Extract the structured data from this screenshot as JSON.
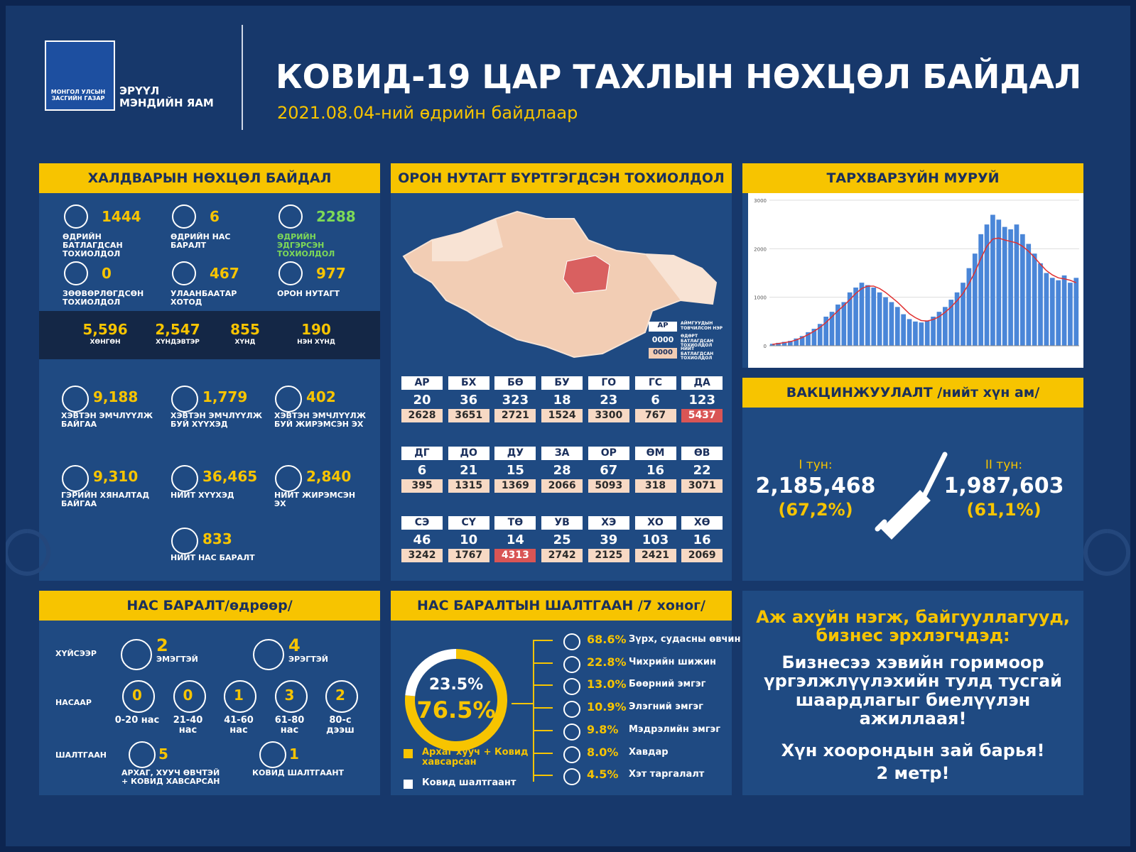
{
  "header": {
    "logo_text": "МОНГОЛ УЛСЫН ЗАСГИЙН ГАЗАР",
    "ministry": "ЭРҮҮЛ МЭНДИЙН ЯАМ",
    "title": "КОВИД-19 ЦАР ТАХЛЫН НӨХЦӨЛ БАЙДАЛ",
    "subtitle": "2021.08.04-ний өдрийн байдлаар"
  },
  "infection": {
    "title": "ХАЛДВАРЫН НӨХЦӨЛ БАЙДАЛ",
    "top": [
      {
        "value": "1444",
        "label": "ӨДРИЙН БАТЛАГДСАН ТОХИОЛДОЛ"
      },
      {
        "value": "6",
        "label": "ӨДРИЙН НАС БАРАЛТ"
      },
      {
        "value": "2288",
        "label": "ӨДРИЙН ЭДГЭРСЭН ТОХИОЛДОЛ",
        "color": "#7ed957"
      },
      {
        "value": "0",
        "label": "ЗӨӨВӨРЛӨГДСӨН ТОХИОЛДОЛ"
      },
      {
        "value": "467",
        "label": "УЛААНБААТАР ХОТОД"
      },
      {
        "value": "977",
        "label": "ОРОН НУТАГТ"
      }
    ],
    "severity": [
      {
        "value": "5,596",
        "label": "ХӨНГӨН"
      },
      {
        "value": "2,547",
        "label": "ХҮНДЭВТЭР"
      },
      {
        "value": "855",
        "label": "ХҮНД"
      },
      {
        "value": "190",
        "label": "НЭН ХҮНД"
      }
    ],
    "care": [
      {
        "value": "9,188",
        "label": "ХЭВТЭН ЭМЧЛҮҮЛЖ БАЙГАА"
      },
      {
        "value": "1,779",
        "label": "ХЭВТЭН ЭМЧЛҮҮЛЖ БУЙ ХҮҮХЭД"
      },
      {
        "value": "402",
        "label": "ХЭВТЭН ЭМЧЛҮҮЛЖ БУЙ ЖИРЭМСЭН ЭХ"
      },
      {
        "value": "9,310",
        "label": "ГЭРИЙН ХЯНАЛТАД БАЙГАА"
      },
      {
        "value": "36,465",
        "label": "НИЙТ ХҮҮХЭД"
      },
      {
        "value": "2,840",
        "label": "НИЙТ ЖИРЭМСЭН ЭХ"
      },
      {
        "value": "833",
        "label": "НИЙТ НАС БАРАЛТ"
      }
    ]
  },
  "map": {
    "title": "ОРОН НУТАГТ БҮРТГЭГДСЭН ТОХИОЛДОЛ",
    "legend": {
      "code": "АР",
      "code_desc": "АЙМГУУДЫН ТОВЧИЛСОН НЭР",
      "daily": "0000",
      "daily_desc": "ӨДӨРТ БАТЛАГДСАН ТОХИОЛДОЛ",
      "total": "0000",
      "total_desc": "НИЙТ БАТЛАГДСАН ТОХИОЛДОЛ"
    },
    "aimags": [
      {
        "code": "АР",
        "daily": "20",
        "total": "2628"
      },
      {
        "code": "БХ",
        "daily": "36",
        "total": "3651"
      },
      {
        "code": "БӨ",
        "daily": "323",
        "total": "2721"
      },
      {
        "code": "БУ",
        "daily": "18",
        "total": "1524"
      },
      {
        "code": "ГО",
        "daily": "23",
        "total": "3300"
      },
      {
        "code": "ГС",
        "daily": "6",
        "total": "767"
      },
      {
        "code": "ДА",
        "daily": "123",
        "total": "5437",
        "highlight": true
      },
      {
        "code": "ДГ",
        "daily": "6",
        "total": "395"
      },
      {
        "code": "ДО",
        "daily": "21",
        "total": "1315"
      },
      {
        "code": "ДУ",
        "daily": "15",
        "total": "1369"
      },
      {
        "code": "ЗА",
        "daily": "28",
        "total": "2066"
      },
      {
        "code": "ОР",
        "daily": "67",
        "total": "5093"
      },
      {
        "code": "ӨМ",
        "daily": "16",
        "total": "318"
      },
      {
        "code": "ӨВ",
        "daily": "22",
        "total": "3071"
      },
      {
        "code": "СЭ",
        "daily": "46",
        "total": "3242"
      },
      {
        "code": "СҮ",
        "daily": "10",
        "total": "1767"
      },
      {
        "code": "ТӨ",
        "daily": "14",
        "total": "4313",
        "highlight": true
      },
      {
        "code": "УВ",
        "daily": "25",
        "total": "2742"
      },
      {
        "code": "ХЭ",
        "daily": "39",
        "total": "2125"
      },
      {
        "code": "ХО",
        "daily": "103",
        "total": "2421"
      },
      {
        "code": "ХӨ",
        "daily": "16",
        "total": "2069"
      }
    ]
  },
  "vaccination": {
    "title": "ВАКЦИНЖУУЛАЛТ /нийт хүн ам/",
    "doses": [
      {
        "label": "I тун:",
        "value": "2,185,468",
        "pct": "(67,2%)"
      },
      {
        "label": "II тун:",
        "value": "1,987,603",
        "pct": "(61,1%)"
      }
    ]
  },
  "deaths": {
    "title": "НАС БАРАЛТ/өдрөөр/",
    "sex_label": "ХҮЙСЭЭР",
    "sex": [
      {
        "value": "2",
        "label": "ЭМЭГТЭЙ"
      },
      {
        "value": "4",
        "label": "ЭРЭГТЭЙ"
      }
    ],
    "age_label": "НАСААР",
    "age": [
      {
        "value": "0",
        "label": "0-20 нас"
      },
      {
        "value": "0",
        "label": "21-40 нас"
      },
      {
        "value": "1",
        "label": "41-60 нас"
      },
      {
        "value": "3",
        "label": "61-80 нас"
      },
      {
        "value": "2",
        "label": "80-с дээш"
      }
    ],
    "cause_label": "ШАЛТГААН",
    "causes": [
      {
        "value": "5",
        "label": "АРХАГ, ХУУЧ ӨВЧТЭЙ + КОВИД ХАВСАРСАН"
      },
      {
        "value": "1",
        "label": "КОВИД ШАЛТГААНТ"
      }
    ]
  },
  "death_causes": [
    {
      "pct": "68.6%",
      "label": "Зүрх, судасны өвчин"
    },
    {
      "pct": "22.8%",
      "label": "Чихрийн шижин"
    },
    {
      "pct": "13.0%",
      "label": "Бөөрний эмгэг"
    },
    {
      "pct": "10.9%",
      "label": "Элэгний эмгэг"
    },
    {
      "pct": "9.8%",
      "label": "Мэдрэлийн эмгэг"
    },
    {
      "pct": "8.0%",
      "label": "Хавдар"
    },
    {
      "pct": "4.5%",
      "label": "Хэт таргалалт"
    }
  ],
  "message": {
    "highlight": "Аж ахуйн нэгж, байгууллагууд, бизнес эрхлэгчдэд:",
    "body": "Бизнесээ хэвийн горимоор үргэлжлүүлэхийн тулд тусгай шаардлагыг биелүүлэн ажиллаая!",
    "distance": "Хүн хоорондын зай барья!",
    "meters": "2 метр!"
  },
  "chart_data": [
    {
      "type": "bar",
      "title": "ТАРХВАРЗҮЙН МУРУЙ",
      "ylim": [
        0,
        3000
      ],
      "yticks": [
        0,
        1000,
        2000,
        3000
      ],
      "grid": true,
      "categories": [
        null,
        null,
        null,
        null,
        null,
        null,
        null,
        null,
        null,
        null,
        null,
        null,
        null,
        null,
        null,
        null,
        null,
        null,
        null,
        null,
        null,
        null,
        null,
        null,
        null,
        null,
        null,
        null,
        null,
        null,
        null,
        null,
        null,
        null,
        null,
        null,
        null,
        null,
        null,
        null,
        null,
        null,
        null,
        null,
        null,
        null,
        null,
        null,
        null,
        null,
        null,
        null
      ],
      "series": [
        {
          "type": "bar",
          "color": "#4a86d8",
          "values": [
            40,
            60,
            80,
            100,
            150,
            200,
            280,
            350,
            450,
            600,
            700,
            850,
            900,
            1100,
            1200,
            1300,
            1250,
            1200,
            1100,
            1000,
            900,
            800,
            650,
            550,
            500,
            480,
            520,
            600,
            700,
            800,
            950,
            1100,
            1300,
            1600,
            1900,
            2300,
            2500,
            2700,
            2600,
            2450,
            2400,
            2500,
            2300,
            2100,
            1900,
            1700,
            1500,
            1400,
            1350,
            1450,
            1300,
            1400
          ]
        },
        {
          "type": "line",
          "color": "#e03030",
          "values": [
            30,
            45,
            65,
            85,
            120,
            170,
            230,
            300,
            380,
            480,
            600,
            720,
            830,
            950,
            1080,
            1180,
            1230,
            1230,
            1180,
            1100,
            1000,
            900,
            780,
            660,
            580,
            520,
            510,
            540,
            600,
            690,
            800,
            930,
            1080,
            1280,
            1520,
            1800,
            2050,
            2200,
            2220,
            2180,
            2150,
            2120,
            2050,
            1950,
            1820,
            1680,
            1550,
            1460,
            1400,
            1380,
            1350,
            1300
          ]
        }
      ]
    },
    {
      "type": "donut",
      "title": "НАС БАРАЛТЫН ШАЛТГААН /7 хоног/",
      "categories": [
        "Архаг хууч + Ковид хавсарсан",
        "Ковид шалтгаант"
      ],
      "values": [
        76.5,
        23.5
      ],
      "value_labels": [
        "76.5%",
        "23.5%"
      ],
      "colors": [
        "#f7c400",
        "#ffffff"
      ]
    }
  ]
}
